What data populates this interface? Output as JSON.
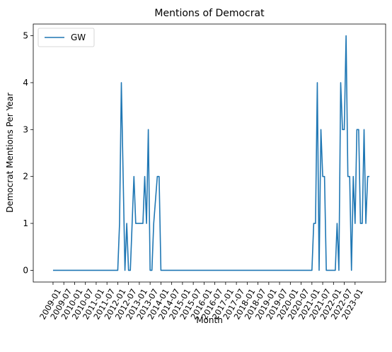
{
  "chart_data": {
    "type": "line",
    "title": "Mentions of Democrat",
    "xlabel": "Month",
    "ylabel": "Democrat Mentions Per Year",
    "ylim": [
      -0.25,
      5.25
    ],
    "yticks": [
      0,
      1,
      2,
      3,
      4,
      5
    ],
    "xticks": [
      "2009-01",
      "2009-07",
      "2010-01",
      "2010-07",
      "2011-01",
      "2011-07",
      "2012-01",
      "2012-07",
      "2013-01",
      "2013-07",
      "2014-01",
      "2014-07",
      "2015-01",
      "2015-07",
      "2016-01",
      "2016-07",
      "2017-01",
      "2017-07",
      "2018-01",
      "2018-07",
      "2019-01",
      "2019-07",
      "2020-01",
      "2020-07",
      "2021-01",
      "2021-07",
      "2022-01",
      "2022-07",
      "2023-01"
    ],
    "x_axis_unit": "months since 2009-01",
    "xlim": [
      -11,
      185
    ],
    "grid": false,
    "legend_position": "top-left",
    "colors": {
      "series": "#1f77b4",
      "axis": "#000000",
      "background": "#ffffff"
    },
    "series": [
      {
        "name": "GW",
        "points": [
          [
            0,
            0
          ],
          [
            36,
            0
          ],
          [
            37,
            1
          ],
          [
            38,
            4
          ],
          [
            39,
            2
          ],
          [
            40,
            0
          ],
          [
            41,
            1
          ],
          [
            42,
            0
          ],
          [
            43,
            0
          ],
          [
            44,
            1
          ],
          [
            45,
            2
          ],
          [
            46,
            1
          ],
          [
            47,
            1
          ],
          [
            48,
            1
          ],
          [
            49,
            1
          ],
          [
            50,
            1
          ],
          [
            51,
            2
          ],
          [
            52,
            1
          ],
          [
            53,
            3
          ],
          [
            54,
            0
          ],
          [
            55,
            0
          ],
          [
            56,
            1
          ],
          [
            57,
            1.5
          ],
          [
            58,
            2
          ],
          [
            59,
            2
          ],
          [
            60,
            0
          ],
          [
            144,
            0
          ],
          [
            145,
            1
          ],
          [
            146,
            1
          ],
          [
            147,
            4
          ],
          [
            148,
            0
          ],
          [
            149,
            3
          ],
          [
            150,
            2
          ],
          [
            151,
            2
          ],
          [
            152,
            0
          ],
          [
            153,
            0
          ],
          [
            156,
            0
          ],
          [
            157,
            0
          ],
          [
            158,
            1
          ],
          [
            159,
            0
          ],
          [
            160,
            4
          ],
          [
            161,
            3
          ],
          [
            162,
            3
          ],
          [
            163,
            5
          ],
          [
            164,
            2
          ],
          [
            165,
            2
          ],
          [
            166,
            0
          ],
          [
            167,
            2
          ],
          [
            168,
            1
          ],
          [
            169,
            3
          ],
          [
            170,
            3
          ],
          [
            171,
            1
          ],
          [
            172,
            1
          ],
          [
            173,
            3
          ],
          [
            174,
            1
          ],
          [
            175,
            2
          ],
          [
            176,
            2
          ]
        ]
      }
    ]
  }
}
